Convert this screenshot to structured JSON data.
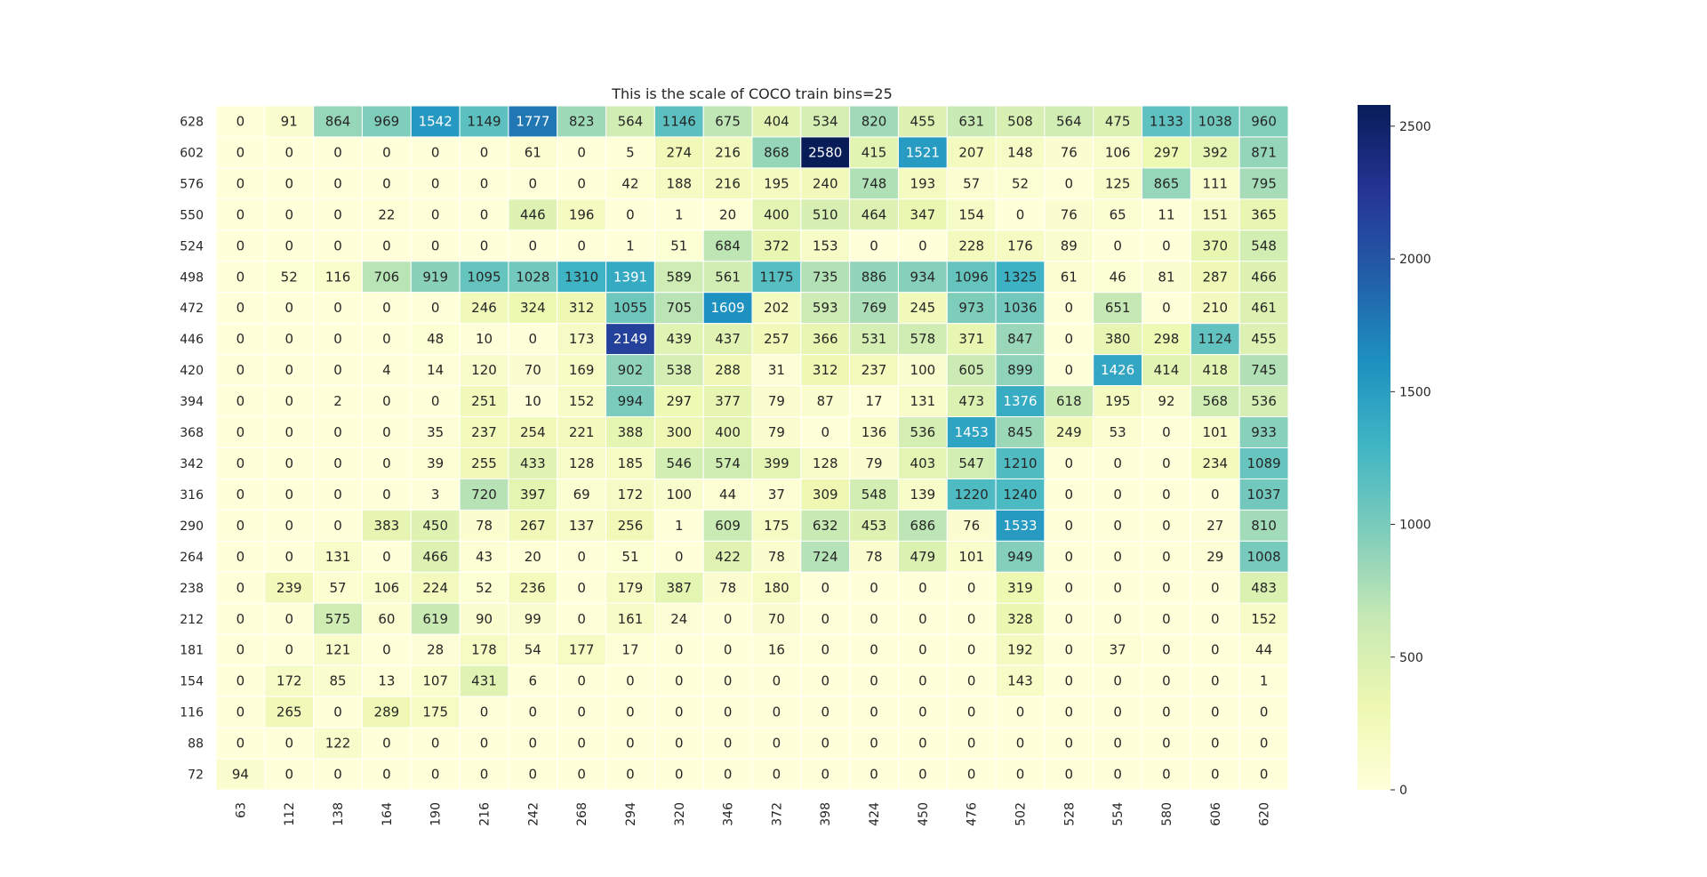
{
  "chart_data": {
    "type": "heatmap",
    "title": "This is the scale of COCO train bins=25",
    "x_labels": [
      "63",
      "112",
      "138",
      "164",
      "190",
      "216",
      "242",
      "268",
      "294",
      "320",
      "346",
      "372",
      "398",
      "424",
      "450",
      "476",
      "502",
      "528",
      "554",
      "580",
      "606",
      "620"
    ],
    "y_labels": [
      "628",
      "602",
      "576",
      "550",
      "524",
      "498",
      "472",
      "446",
      "420",
      "394",
      "368",
      "342",
      "316",
      "290",
      "264",
      "238",
      "212",
      "181",
      "154",
      "116",
      "88",
      "72"
    ],
    "values": [
      [
        0,
        91,
        864,
        969,
        1542,
        1149,
        1777,
        823,
        564,
        1146,
        675,
        404,
        534,
        820,
        455,
        631,
        508,
        564,
        475,
        1133,
        1038,
        960
      ],
      [
        0,
        0,
        0,
        0,
        0,
        0,
        61,
        0,
        5,
        274,
        216,
        868,
        2580,
        415,
        1521,
        207,
        148,
        76,
        106,
        297,
        392,
        871
      ],
      [
        0,
        0,
        0,
        0,
        0,
        0,
        0,
        0,
        42,
        188,
        216,
        195,
        240,
        748,
        193,
        57,
        52,
        0,
        125,
        865,
        111,
        795
      ],
      [
        0,
        0,
        0,
        22,
        0,
        0,
        446,
        196,
        0,
        1,
        20,
        400,
        510,
        464,
        347,
        154,
        0,
        76,
        65,
        11,
        151,
        365
      ],
      [
        0,
        0,
        0,
        0,
        0,
        0,
        0,
        0,
        1,
        51,
        684,
        372,
        153,
        0,
        0,
        228,
        176,
        89,
        0,
        0,
        370,
        548
      ],
      [
        0,
        52,
        116,
        706,
        919,
        1095,
        1028,
        1310,
        1391,
        589,
        561,
        1175,
        735,
        886,
        934,
        1096,
        1325,
        61,
        46,
        81,
        287,
        466
      ],
      [
        0,
        0,
        0,
        0,
        0,
        246,
        324,
        312,
        1055,
        705,
        1609,
        202,
        593,
        769,
        245,
        973,
        1036,
        0,
        651,
        0,
        210,
        461
      ],
      [
        0,
        0,
        0,
        0,
        48,
        10,
        0,
        173,
        2149,
        439,
        437,
        257,
        366,
        531,
        578,
        371,
        847,
        0,
        380,
        298,
        1124,
        455
      ],
      [
        0,
        0,
        0,
        4,
        14,
        120,
        70,
        169,
        902,
        538,
        288,
        31,
        312,
        237,
        100,
        605,
        899,
        0,
        1426,
        414,
        418,
        745
      ],
      [
        0,
        0,
        2,
        0,
        0,
        251,
        10,
        152,
        994,
        297,
        377,
        79,
        87,
        17,
        131,
        473,
        1376,
        618,
        195,
        92,
        568,
        536
      ],
      [
        0,
        0,
        0,
        0,
        35,
        237,
        254,
        221,
        388,
        300,
        400,
        79,
        0,
        136,
        536,
        1453,
        845,
        249,
        53,
        0,
        101,
        933
      ],
      [
        0,
        0,
        0,
        0,
        39,
        255,
        433,
        128,
        185,
        546,
        574,
        399,
        128,
        79,
        403,
        547,
        1210,
        0,
        0,
        0,
        234,
        1089
      ],
      [
        0,
        0,
        0,
        0,
        3,
        720,
        397,
        69,
        172,
        100,
        44,
        37,
        309,
        548,
        139,
        1220,
        1240,
        0,
        0,
        0,
        0,
        1037
      ],
      [
        0,
        0,
        0,
        383,
        450,
        78,
        267,
        137,
        256,
        1,
        609,
        175,
        632,
        453,
        686,
        76,
        1533,
        0,
        0,
        0,
        27,
        810
      ],
      [
        0,
        0,
        131,
        0,
        466,
        43,
        20,
        0,
        51,
        0,
        422,
        78,
        724,
        78,
        479,
        101,
        949,
        0,
        0,
        0,
        29,
        1008
      ],
      [
        0,
        239,
        57,
        106,
        224,
        52,
        236,
        0,
        179,
        387,
        78,
        180,
        0,
        0,
        0,
        0,
        319,
        0,
        0,
        0,
        0,
        483
      ],
      [
        0,
        0,
        575,
        60,
        619,
        90,
        99,
        0,
        161,
        24,
        0,
        70,
        0,
        0,
        0,
        0,
        328,
        0,
        0,
        0,
        0,
        152
      ],
      [
        0,
        0,
        121,
        0,
        28,
        178,
        54,
        177,
        17,
        0,
        0,
        16,
        0,
        0,
        0,
        0,
        192,
        0,
        37,
        0,
        0,
        44
      ],
      [
        0,
        172,
        85,
        13,
        107,
        431,
        6,
        0,
        0,
        0,
        0,
        0,
        0,
        0,
        0,
        0,
        143,
        0,
        0,
        0,
        0,
        1
      ],
      [
        0,
        265,
        0,
        289,
        175,
        0,
        0,
        0,
        0,
        0,
        0,
        0,
        0,
        0,
        0,
        0,
        0,
        0,
        0,
        0,
        0,
        0
      ],
      [
        0,
        0,
        122,
        0,
        0,
        0,
        0,
        0,
        0,
        0,
        0,
        0,
        0,
        0,
        0,
        0,
        0,
        0,
        0,
        0,
        0,
        0
      ],
      [
        94,
        0,
        0,
        0,
        0,
        0,
        0,
        0,
        0,
        0,
        0,
        0,
        0,
        0,
        0,
        0,
        0,
        0,
        0,
        0,
        0,
        0
      ]
    ],
    "colormap": "YlGnBu",
    "color_stops": [
      "#ffffd9",
      "#edf8b1",
      "#c7e9b4",
      "#7fcdbb",
      "#41b6c4",
      "#1d91c0",
      "#225ea8",
      "#253494",
      "#081d58"
    ],
    "vmin": 0,
    "vmax": 2580,
    "colorbar_ticks": [
      "0",
      "500",
      "1000",
      "1500",
      "2000",
      "2500"
    ],
    "annotate_cells": true,
    "grid": false
  }
}
